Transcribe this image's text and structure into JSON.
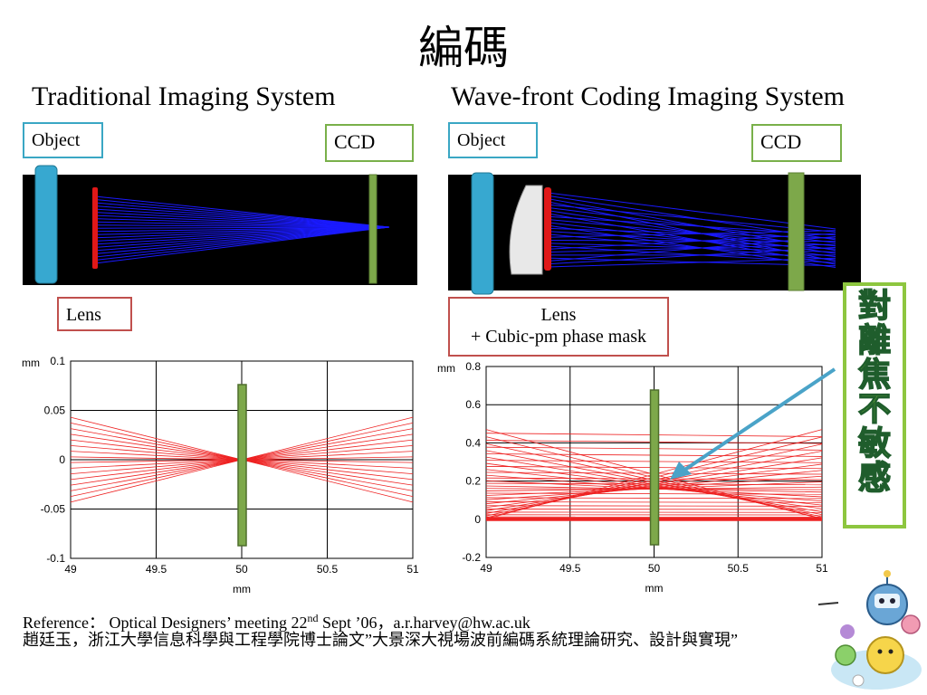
{
  "slide": {
    "title": "編碼",
    "left_heading": "Traditional Imaging System",
    "right_heading": "Wave-front Coding Imaging System"
  },
  "left_diagram": {
    "object_label": "Object",
    "ccd_label": "CCD",
    "lens_label": "Lens"
  },
  "right_diagram": {
    "object_label": "Object",
    "ccd_label": "CCD",
    "lens_label_line1": "Lens",
    "lens_label_line2": "+ Cubic-pm phase mask"
  },
  "side_note": {
    "text": "對離焦不敏感"
  },
  "reference": {
    "line1_prefix": "Reference： Optical Designers’ meeting 22",
    "line1_sup": "nd",
    "line1_suffix": " Sept ’06，a.r.harvey@hw.ac.uk",
    "line2": "趙廷玉，浙江大學信息科學與工程學院博士論文”大景深大視場波前編碼系統理論研究、設計與實現”"
  },
  "colors": {
    "object_lens": "#37a8d0",
    "ccd": "#7da84a",
    "lens_red": "#e01818",
    "rays_blue": "#1a1aff",
    "rays_red": "#ee2222",
    "blue_box": "#3aa7c4",
    "green_box": "#79b04a",
    "red_box": "#c0504d"
  },
  "chart_data": [
    {
      "type": "line",
      "xlabel": "mm",
      "ylabel": "mm",
      "x_ticks": [
        "49",
        "49.5",
        "50",
        "50.5",
        "51"
      ],
      "y_ticks": [
        "0.1",
        "0.05",
        "0",
        "-0.05",
        "-0.1"
      ],
      "xlim": [
        49,
        51
      ],
      "ylim": [
        -0.1,
        0.1
      ],
      "marker_x": 50,
      "rays": {
        "start_x": 49,
        "end_x": 51,
        "focus_x": 50,
        "focus_y": 0,
        "end_y_min": -0.043,
        "end_y_max": 0.043,
        "count": 16
      }
    },
    {
      "type": "line",
      "xlabel": "mm",
      "ylabel": "mm",
      "x_ticks": [
        "49",
        "49.5",
        "50",
        "50.5",
        "51"
      ],
      "y_ticks": [
        "0.8",
        "0.6",
        "0.4",
        "0.2",
        "0",
        "-0.2"
      ],
      "xlim": [
        49,
        51
      ],
      "ylim": [
        -0.2,
        0.8
      ],
      "marker_x": 50,
      "rays": {
        "start_x": 49,
        "end_x": 51,
        "start_y_min": 0.0,
        "start_y_max": 0.47,
        "end_y_min": 0.0,
        "end_y_max": 0.49,
        "count": 40
      }
    }
  ]
}
